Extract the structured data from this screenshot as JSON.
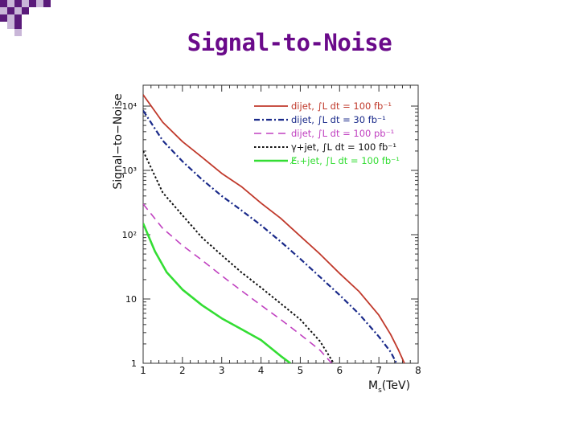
{
  "slide": {
    "title": "Signal-to-Noise"
  },
  "colors": {
    "title": "#6a0a8a",
    "decor_dark": "#5a1a7a",
    "decor_light": "#c9b6d8"
  },
  "chart_data": {
    "type": "line",
    "title": "",
    "ylabel": "Signal−to−Noise",
    "xlabel": "M",
    "xlabel_sub": "s",
    "xlabel_unit": "(TeV)",
    "xlim": [
      1,
      8
    ],
    "ylim": [
      1,
      10000
    ],
    "yscale": "log",
    "grid": false,
    "legend_position": "top-right",
    "x_ticks": [
      "1",
      "2",
      "3",
      "4",
      "5",
      "6",
      "7",
      "8"
    ],
    "y_ticks": [
      {
        "value": 1,
        "label": "1"
      },
      {
        "value": 10,
        "label": "10"
      },
      {
        "value": 100,
        "label": "10²"
      },
      {
        "value": 1000,
        "label": "10³"
      },
      {
        "value": 10000,
        "label": "10⁴"
      }
    ],
    "series": [
      {
        "name": "dijet, ∫L dt = 100 fb⁻¹",
        "color": "#c0392b",
        "dash": "solid",
        "points": [
          [
            1,
            15000
          ],
          [
            1.5,
            5600
          ],
          [
            2,
            2800
          ],
          [
            2.5,
            1600
          ],
          [
            3,
            900
          ],
          [
            3.5,
            560
          ],
          [
            4,
            310
          ],
          [
            4.5,
            180
          ],
          [
            5,
            95
          ],
          [
            5.5,
            50
          ],
          [
            6,
            25
          ],
          [
            6.5,
            13
          ],
          [
            7,
            5.6
          ],
          [
            7.3,
            2.8
          ],
          [
            7.5,
            1.6
          ],
          [
            7.65,
            1
          ]
        ]
      },
      {
        "name": "dijet, ∫L dt = 30 fb⁻¹",
        "color": "#1a2a8a",
        "dash": "dashdot",
        "points": [
          [
            1,
            8500
          ],
          [
            1.5,
            2900
          ],
          [
            2,
            1380
          ],
          [
            2.5,
            720
          ],
          [
            3,
            400
          ],
          [
            3.5,
            240
          ],
          [
            4,
            140
          ],
          [
            4.5,
            78
          ],
          [
            5,
            42
          ],
          [
            5.5,
            22
          ],
          [
            6,
            11.5
          ],
          [
            6.5,
            5.8
          ],
          [
            7,
            2.6
          ],
          [
            7.3,
            1.5
          ],
          [
            7.45,
            1
          ]
        ]
      },
      {
        "name": "dijet, ∫L dt = 100 pb⁻¹",
        "color": "#c040c0",
        "dash": "dashed",
        "points": [
          [
            1,
            300
          ],
          [
            1.5,
            125
          ],
          [
            2,
            68
          ],
          [
            2.5,
            40
          ],
          [
            3,
            23
          ],
          [
            3.5,
            13.5
          ],
          [
            4,
            8
          ],
          [
            4.5,
            4.8
          ],
          [
            5,
            2.8
          ],
          [
            5.5,
            1.6
          ],
          [
            5.8,
            1
          ]
        ]
      },
      {
        "name": "γ+jet, ∫L dt = 100 fb⁻¹",
        "color": "#111111",
        "dash": "dotted",
        "points": [
          [
            1,
            2000
          ],
          [
            1.5,
            450
          ],
          [
            2,
            200
          ],
          [
            2.5,
            90
          ],
          [
            3,
            48
          ],
          [
            3.5,
            26
          ],
          [
            4,
            15
          ],
          [
            4.5,
            8.5
          ],
          [
            5,
            4.8
          ],
          [
            5.5,
            2.2
          ],
          [
            5.85,
            1
          ]
        ]
      },
      {
        "name": "E̸ₜ+jet, ∫L dt = 100 fb⁻¹",
        "color": "#33dd33",
        "dash": "solid-thick",
        "points": [
          [
            1,
            150
          ],
          [
            1.3,
            55
          ],
          [
            1.6,
            26
          ],
          [
            2,
            14
          ],
          [
            2.5,
            8
          ],
          [
            3,
            5
          ],
          [
            3.5,
            3.4
          ],
          [
            4,
            2.3
          ],
          [
            4.5,
            1.3
          ],
          [
            4.75,
            1
          ]
        ]
      }
    ]
  }
}
